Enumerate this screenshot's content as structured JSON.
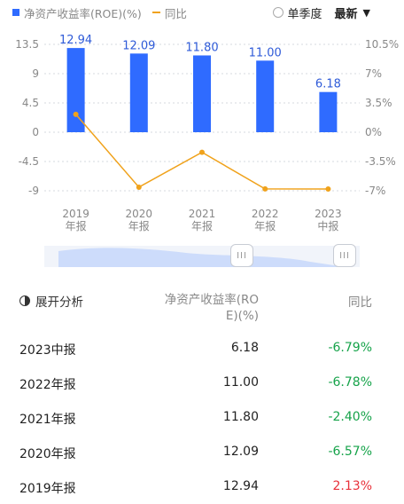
{
  "legend": {
    "bar_label": "净资产收益率(ROE)(%)",
    "line_label": "同比"
  },
  "controls": {
    "quarter_label": "单季度",
    "latest_label": "最新"
  },
  "colors": {
    "bar": "#2f6bff",
    "line": "#f0a21b",
    "positive": "#e8313a",
    "negative": "#16a34a"
  },
  "chart_data": {
    "type": "bar",
    "categories": [
      "2019\n年报",
      "2020\n年报",
      "2021\n年报",
      "2022\n年报",
      "2023\n中报"
    ],
    "series": [
      {
        "name": "净资产收益率(ROE)(%)",
        "type": "bar",
        "axis": "left",
        "values": [
          12.94,
          12.09,
          11.8,
          11.0,
          6.18
        ]
      },
      {
        "name": "同比",
        "type": "line",
        "axis": "right",
        "values": [
          2.13,
          -6.57,
          -2.4,
          -6.78,
          -6.79
        ]
      }
    ],
    "y_left": {
      "ticks": [
        "13.5",
        "9",
        "4.5",
        "0",
        "-4.5",
        "-9"
      ],
      "tick_values": [
        13.5,
        9,
        4.5,
        0,
        -4.5,
        -9
      ]
    },
    "y_right": {
      "ticks": [
        "10.5%",
        "7%",
        "3.5%",
        "0%",
        "-3.5%",
        "-7%"
      ],
      "tick_values": [
        10.5,
        7,
        3.5,
        0,
        -3.5,
        -7
      ]
    },
    "data_labels": [
      "12.94",
      "12.09",
      "11.80",
      "11.00",
      "6.18"
    ]
  },
  "slider": {
    "handle_glyph": "III"
  },
  "table": {
    "header_name": "展开分析",
    "header_value": "净资产收益率(ROE)(%)",
    "header_yoy": "同比",
    "rows": [
      {
        "name": "2023中报",
        "value": "6.18",
        "yoy": "-6.79%",
        "sign": "neg"
      },
      {
        "name": "2022年报",
        "value": "11.00",
        "yoy": "-6.78%",
        "sign": "neg"
      },
      {
        "name": "2021年报",
        "value": "11.80",
        "yoy": "-2.40%",
        "sign": "neg"
      },
      {
        "name": "2020年报",
        "value": "12.09",
        "yoy": "-6.57%",
        "sign": "neg"
      },
      {
        "name": "2019年报",
        "value": "12.94",
        "yoy": "2.13%",
        "sign": "pos"
      }
    ]
  }
}
